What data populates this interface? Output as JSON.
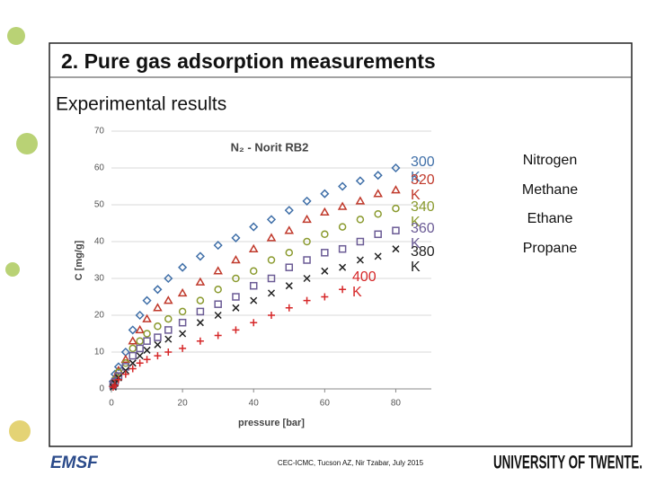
{
  "slide": {
    "title": "2. Pure gas adsorption measurements",
    "subtitle": "Experimental results",
    "gases": [
      "Nitrogen",
      "Methane",
      "Ethane",
      "Propane"
    ],
    "footer": "CEC-ICMC, Tucson AZ, Nir Tzabar, July 2015",
    "logo_left": "EMSF",
    "logo_right": "UNIVERSITY OF TWENTE."
  },
  "chart_data": {
    "type": "scatter",
    "title": "N₂ - Norit RB2",
    "x_label": "pressure [bar]",
    "y_label": "C [mg/g]",
    "x": [
      0.5,
      1,
      2,
      4,
      6,
      8,
      10,
      13,
      16,
      20,
      25,
      30,
      35,
      40,
      45,
      50,
      55,
      60,
      65,
      70,
      75,
      80
    ],
    "xlim": [
      0,
      90
    ],
    "xticks": [
      0,
      20,
      40,
      60,
      80
    ],
    "ylim": [
      0,
      70
    ],
    "yticks": [
      0,
      10,
      20,
      30,
      40,
      50,
      60,
      70
    ],
    "grid": true,
    "series": [
      {
        "name": "300 K",
        "color": "#3f6fa8",
        "marker": "diamond",
        "values": [
          2,
          4,
          6,
          10,
          16,
          20,
          24,
          27,
          30,
          33,
          36,
          39,
          41,
          44,
          46,
          48.5,
          51,
          53,
          55,
          56.5,
          58,
          60
        ]
      },
      {
        "name": "320 K",
        "color": "#c0392b",
        "marker": "triangle",
        "values": [
          1.5,
          3,
          5,
          8,
          13,
          16,
          19,
          22,
          24,
          26,
          29,
          32,
          35,
          38,
          41,
          43,
          46,
          48,
          49.5,
          51,
          53,
          54
        ]
      },
      {
        "name": "340 K",
        "color": "#8a9a2e",
        "marker": "circle",
        "values": [
          1,
          2.5,
          4.5,
          7,
          11,
          13,
          15,
          17,
          19,
          21,
          24,
          27,
          30,
          32,
          35,
          37,
          40,
          42,
          44,
          46,
          47.5,
          49
        ]
      },
      {
        "name": "360 K",
        "color": "#6b5b95",
        "marker": "square",
        "values": [
          1,
          2,
          3.5,
          6,
          9,
          11,
          13,
          14,
          16,
          18,
          21,
          23,
          25,
          28,
          30,
          33,
          35,
          37,
          38,
          40,
          42,
          43
        ]
      },
      {
        "name": "380 K",
        "color": "#222222",
        "marker": "x",
        "values": [
          0.5,
          1.5,
          3,
          5,
          7,
          9,
          10.5,
          12,
          13.5,
          15,
          18,
          20,
          22,
          24,
          26,
          28,
          30,
          32,
          33,
          35,
          36,
          38
        ]
      },
      {
        "name": "400 K",
        "color": "#d62728",
        "marker": "plus",
        "values": [
          0.5,
          1,
          2.5,
          4,
          5.5,
          7,
          8,
          9,
          10,
          11,
          13,
          14.5,
          16,
          18,
          20,
          22,
          24,
          25,
          27,
          null,
          null,
          null
        ]
      }
    ]
  }
}
